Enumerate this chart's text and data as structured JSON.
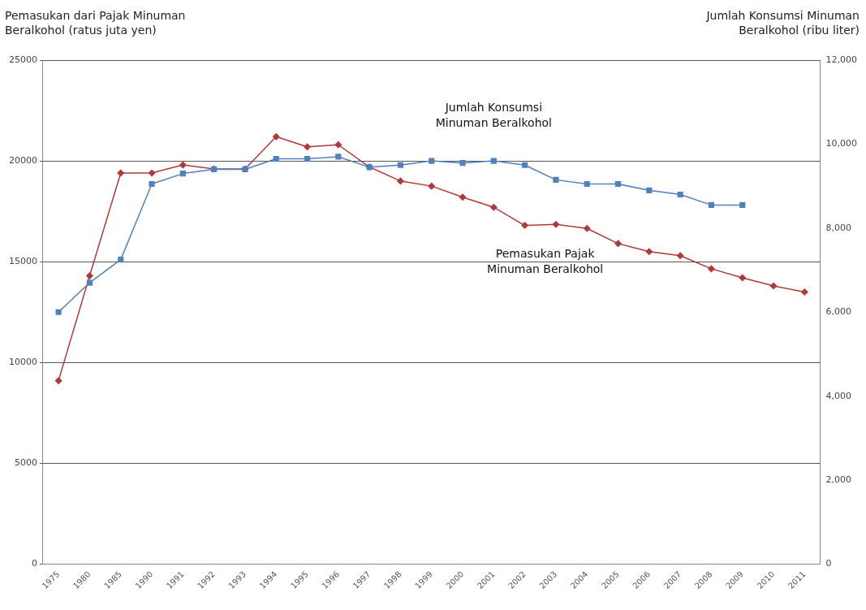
{
  "chart_data": {
    "type": "line",
    "ylabel": "Pemasukan dari Pajak Minuman Beralkohol (ratus juta yen)",
    "y2label": "Jumlah Konsumsi Minuman Beralkohol (ribu liter)",
    "categories": [
      "1975",
      "1980",
      "1985",
      "1990",
      "1991",
      "1992",
      "1993",
      "1994",
      "1995",
      "1996",
      "1997",
      "1998",
      "1999",
      "2000",
      "2001",
      "2002",
      "2003",
      "2004",
      "2005",
      "2006",
      "2007",
      "2008",
      "2009",
      "2010",
      "2011"
    ],
    "series": [
      {
        "name": "Pemasukan Pajak\nMinuman Beralkohol",
        "color": "#b03a3a",
        "marker": "diamond",
        "values": [
          9100,
          14300,
          19400,
          19400,
          19800,
          19600,
          19600,
          21200,
          20700,
          20800,
          19700,
          19000,
          18750,
          18200,
          17700,
          16800,
          16850,
          16650,
          15900,
          15500,
          15300,
          14650,
          14200,
          13800,
          13500
        ]
      },
      {
        "name": "Jumlah Konsumsi\nMinuman Beralkohol",
        "color": "#4f81bd",
        "marker": "square",
        "axis": "y2",
        "values": [
          6000,
          6700,
          7250,
          9050,
          9300,
          9400,
          9400,
          9650,
          9650,
          9700,
          9450,
          9500,
          9600,
          9550,
          9600,
          9500,
          9150,
          9050,
          9050,
          8900,
          8800,
          8550,
          8550,
          null,
          null
        ]
      }
    ],
    "ylim": [
      0,
      25000
    ],
    "yticks": [
      0,
      5000,
      10000,
      15000,
      20000,
      25000
    ],
    "y2lim": [
      0,
      12000
    ],
    "y2ticks": [
      0,
      {
        "value": 2000,
        "label": "2,000"
      },
      {
        "value": 4000,
        "label": "4,000"
      },
      {
        "value": 6000,
        "label": "6,000"
      },
      {
        "value": 8000,
        "label": "8,000"
      },
      {
        "value": 10000,
        "label": "10,000"
      },
      {
        "value": 12000,
        "label": "12,000"
      }
    ],
    "grid": "y",
    "legend": false,
    "line_style": "solid"
  }
}
